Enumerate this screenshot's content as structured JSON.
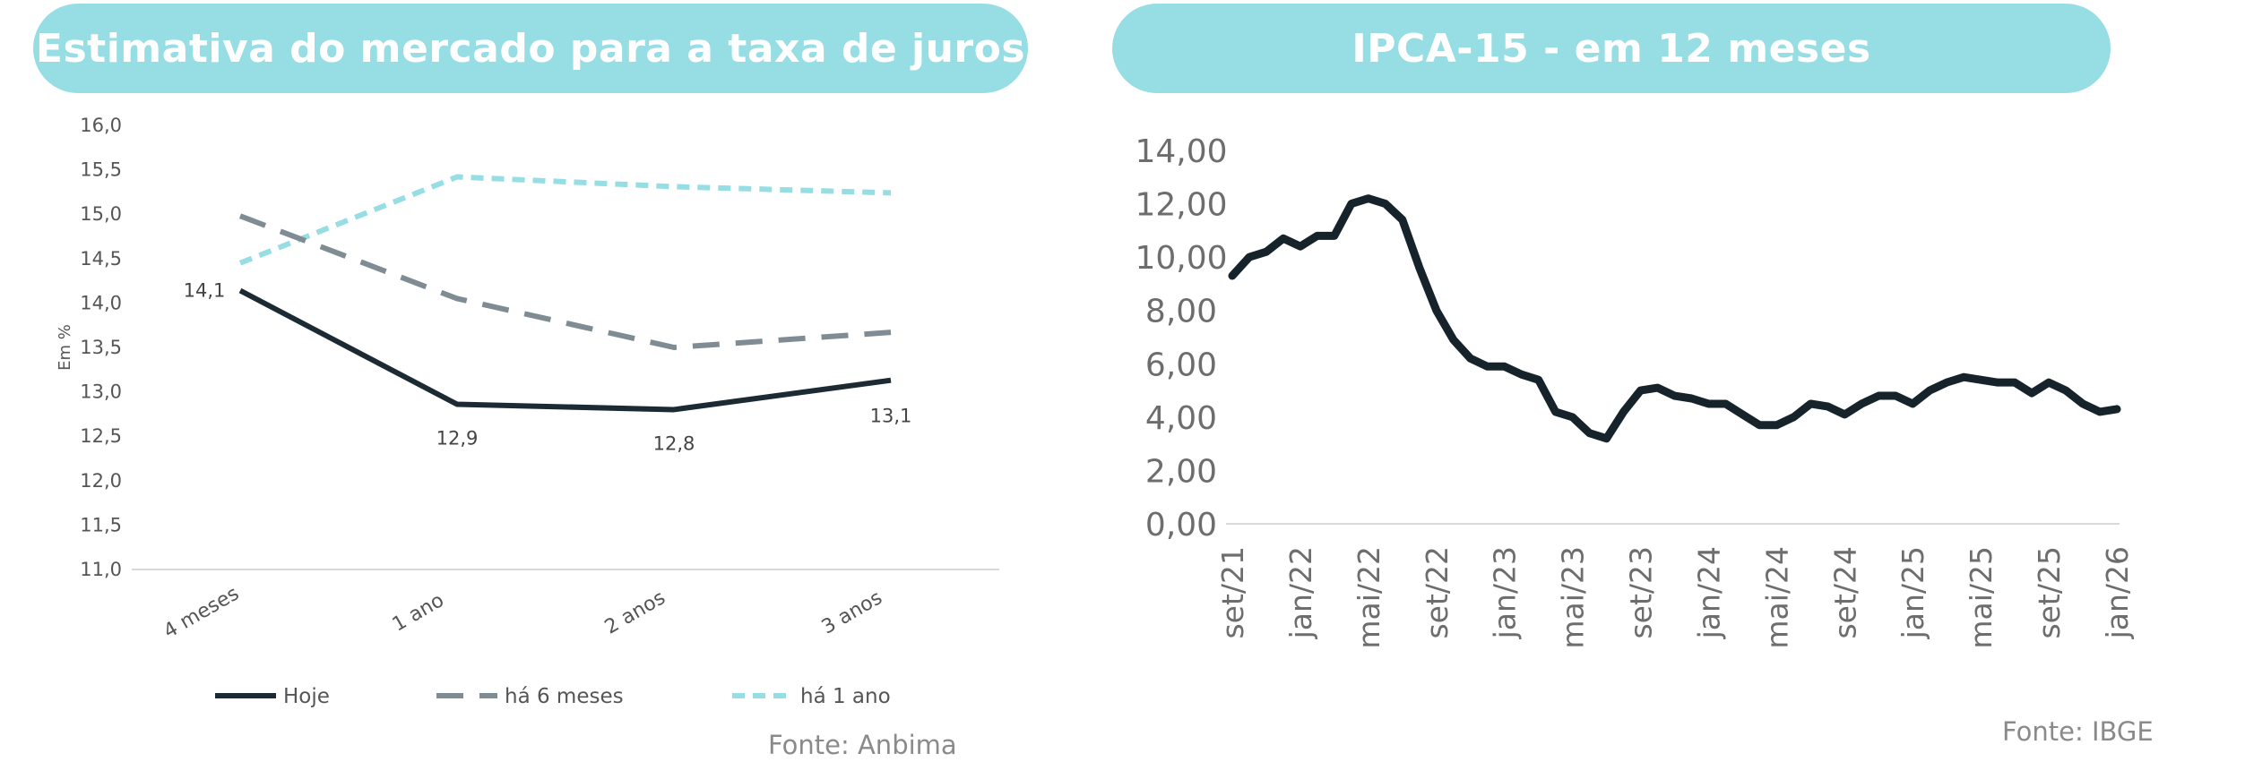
{
  "chart_data": [
    {
      "type": "line",
      "title": "Estimativa do mercado para a taxa de juros",
      "ylabel": "Em %",
      "xlabel": "",
      "categories": [
        "4 meses",
        "1 ano",
        "2 anos",
        "3 anos"
      ],
      "yticks": [
        "16,0",
        "15,5",
        "15,0",
        "14,5",
        "14,0",
        "13,5",
        "13,0",
        "12,5",
        "12,0",
        "11,5",
        "11,0"
      ],
      "ylim": [
        11.0,
        16.0
      ],
      "series": [
        {
          "name": "Hoje",
          "values": [
            14.14,
            12.86,
            12.8,
            13.13
          ],
          "labels": [
            "14,1",
            "12,9",
            "12,8",
            "13,1"
          ],
          "color": "#1c2a33",
          "dash": "solid"
        },
        {
          "name": "há 6 meses",
          "values": [
            14.98,
            14.05,
            13.5,
            13.67
          ],
          "color": "#7f8c94",
          "dash": "long-dash"
        },
        {
          "name": "há 1 ano",
          "values": [
            14.45,
            15.42,
            15.31,
            15.24
          ],
          "color": "#96dde4",
          "dash": "short-dash"
        }
      ],
      "legend": "bottom",
      "grid": false,
      "source": "Fonte: Anbima"
    },
    {
      "type": "line",
      "title": "IPCA-15 - em 12 meses",
      "xlabel": "",
      "ylabel": "",
      "ylim": [
        0,
        14
      ],
      "yticks": [
        "14,00",
        "12,00",
        "10,00",
        "8,00",
        "6,00",
        "4,00",
        "2,00",
        "0,00"
      ],
      "xticks": [
        "set/21",
        "jan/22",
        "mai/22",
        "set/22",
        "jan/23",
        "mai/23",
        "set/23",
        "jan/24",
        "mai/24",
        "set/24",
        "jan/25",
        "mai/25",
        "set/25",
        "jan/26"
      ],
      "x": [
        "set/21",
        "out/21",
        "nov/21",
        "dez/21",
        "jan/22",
        "fev/22",
        "mar/22",
        "abr/22",
        "mai/22",
        "jun/22",
        "jul/22",
        "ago/22",
        "set/22",
        "out/22",
        "nov/22",
        "dez/22",
        "jan/23",
        "fev/23",
        "mar/23",
        "abr/23",
        "mai/23",
        "jun/23",
        "jul/23",
        "ago/23",
        "set/23",
        "out/23",
        "nov/23",
        "dez/23",
        "jan/24",
        "fev/24",
        "mar/24",
        "abr/24",
        "mai/24",
        "jun/24",
        "jul/24",
        "ago/24",
        "set/24",
        "out/24",
        "nov/24",
        "dez/24",
        "jan/25",
        "fev/25",
        "mar/25",
        "abr/25",
        "mai/25",
        "jun/25",
        "jul/25",
        "ago/25",
        "set/25",
        "out/25",
        "nov/25",
        "dez/25",
        "jan/26"
      ],
      "series": [
        {
          "name": "",
          "color": "#16232b",
          "values": [
            9.3,
            10.0,
            10.2,
            10.7,
            10.4,
            10.8,
            10.8,
            12.0,
            12.2,
            12.0,
            11.4,
            9.6,
            8.0,
            6.9,
            6.2,
            5.9,
            5.9,
            5.6,
            5.4,
            4.2,
            4.0,
            3.4,
            3.2,
            4.2,
            5.0,
            5.1,
            4.8,
            4.7,
            4.5,
            4.5,
            4.1,
            3.7,
            3.7,
            4.0,
            4.5,
            4.4,
            4.1,
            4.5,
            4.8,
            4.8,
            4.5,
            5.0,
            5.3,
            5.5,
            5.4,
            5.3,
            5.3,
            4.9,
            5.3,
            5.0,
            4.5,
            4.2,
            4.3
          ]
        }
      ],
      "grid": false,
      "source": "Fonte: IBGE"
    }
  ]
}
